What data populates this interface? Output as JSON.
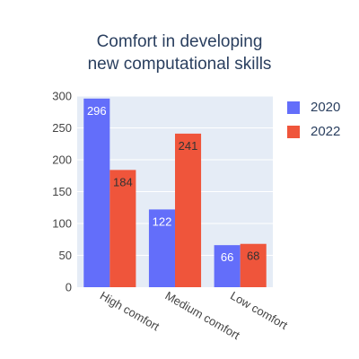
{
  "chart_data": {
    "type": "bar",
    "title_lines": [
      "Comfort in developing",
      "new computational skills"
    ],
    "categories": [
      "High comfort",
      "Medium comfort",
      "Low comfort"
    ],
    "series": [
      {
        "name": "2020",
        "values": [
          296,
          122,
          66
        ],
        "color": "#636efa",
        "label_color": "#ffffff"
      },
      {
        "name": "2022",
        "values": [
          184,
          241,
          68
        ],
        "color": "#ef553b",
        "label_color": "#333333"
      }
    ],
    "ylim": [
      0,
      300
    ],
    "yticks": [
      0,
      50,
      100,
      150,
      200,
      250,
      300
    ],
    "xlabel": "",
    "ylabel": "",
    "grid": true,
    "legend_position": "right",
    "colors": {
      "plot_background": "#e5ecf6",
      "gridline": "#ffffff",
      "text": "#2a3f5f",
      "tick_text": "#444444"
    }
  }
}
